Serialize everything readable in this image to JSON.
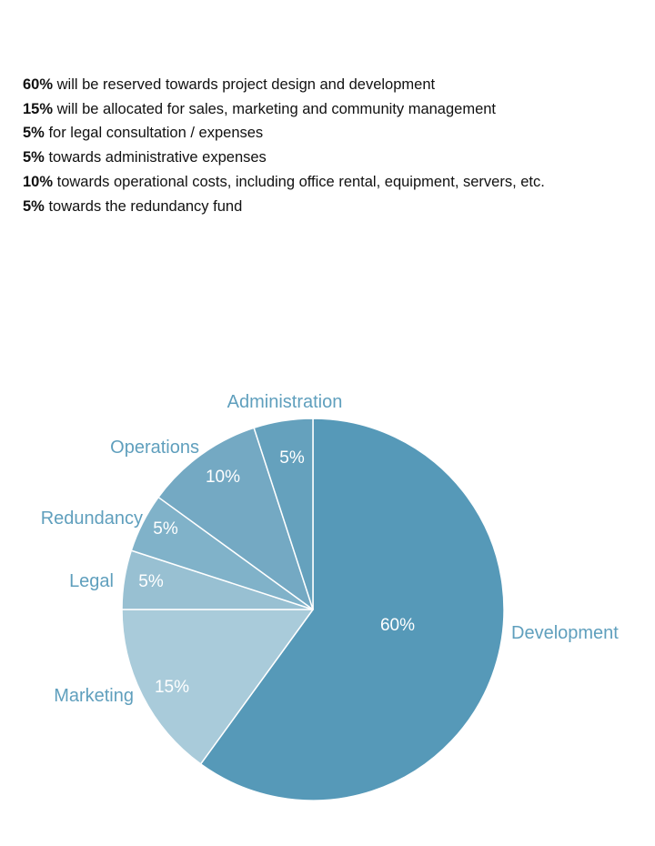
{
  "allocation_text": [
    {
      "amount": "60%",
      "text": " will be reserved towards project design and development"
    },
    {
      "amount": "15%",
      "text": " will be allocated for sales, marketing and community management"
    },
    {
      "amount": "5%",
      "text": " for legal consultation / expenses"
    },
    {
      "amount": "5%",
      "text": " towards administrative expenses"
    },
    {
      "amount": "10%",
      "text": " towards operational costs, including office rental, equipment, servers, etc."
    },
    {
      "amount": "5%",
      "text": " towards the redundancy fund"
    }
  ],
  "chart_data": {
    "type": "pie",
    "title": "",
    "slices": [
      {
        "name": "Development",
        "value": 60,
        "label": "60%",
        "color": "#5699b8"
      },
      {
        "name": "Marketing",
        "value": 15,
        "label": "15%",
        "color": "#a9cbda"
      },
      {
        "name": "Legal",
        "value": 5,
        "label": "5%",
        "color": "#98c0d2"
      },
      {
        "name": "Redundancy",
        "value": 5,
        "label": "5%",
        "color": "#80b2c9"
      },
      {
        "name": "Operations",
        "value": 10,
        "label": "10%",
        "color": "#74a9c3"
      },
      {
        "name": "Administration",
        "value": 5,
        "label": "5%",
        "color": "#65a1bd"
      }
    ],
    "label_color": "#5f9fbd",
    "start": "top, clockwise"
  }
}
